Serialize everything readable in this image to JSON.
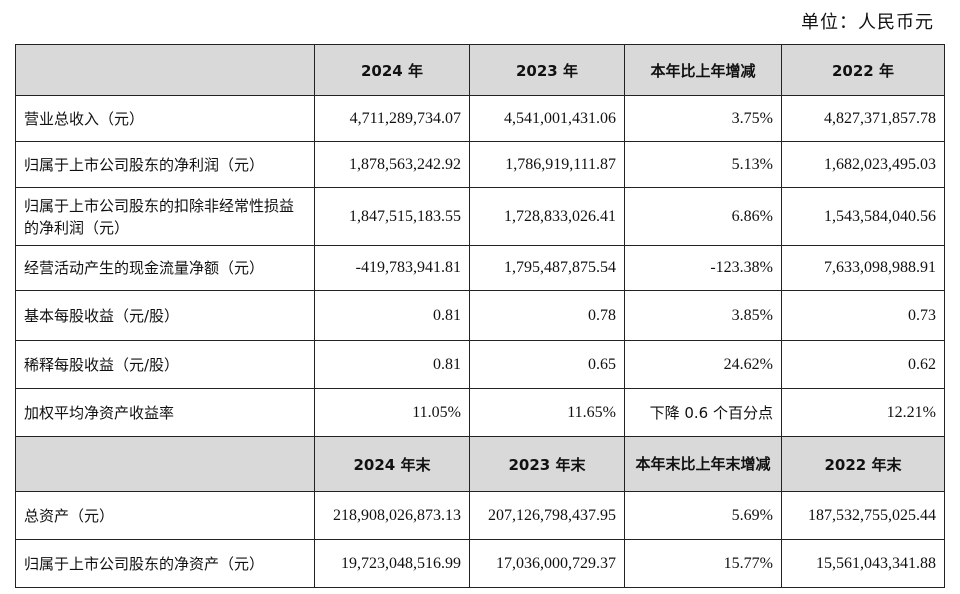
{
  "unit_note": "单位：人民币元",
  "header1": [
    "",
    "2024 年",
    "2023 年",
    "本年比上年增减",
    "2022 年"
  ],
  "rows1": [
    {
      "label": "营业总收入（元）",
      "v2024": "4,711,289,734.07",
      "v2023": "4,541,001,431.06",
      "change": "3.75%",
      "v2022": "4,827,371,857.78"
    },
    {
      "label": "归属于上市公司股东的净利润（元）",
      "v2024": "1,878,563,242.92",
      "v2023": "1,786,919,111.87",
      "change": "5.13%",
      "v2022": "1,682,023,495.03"
    },
    {
      "label": "归属于上市公司股东的扣除非经常性损益的净利润（元）",
      "v2024": "1,847,515,183.55",
      "v2023": "1,728,833,026.41",
      "change": "6.86%",
      "v2022": "1,543,584,040.56"
    },
    {
      "label": "经营活动产生的现金流量净额（元）",
      "v2024": "-419,783,941.81",
      "v2023": "1,795,487,875.54",
      "change": "-123.38%",
      "v2022": "7,633,098,988.91"
    },
    {
      "label": "基本每股收益（元/股）",
      "v2024": "0.81",
      "v2023": "0.78",
      "change": "3.85%",
      "v2022": "0.73"
    },
    {
      "label": "稀释每股收益（元/股）",
      "v2024": "0.81",
      "v2023": "0.65",
      "change": "24.62%",
      "v2022": "0.62"
    },
    {
      "label": "加权平均净资产收益率",
      "v2024": "11.05%",
      "v2023": "11.65%",
      "change": "下降 0.6 个百分点",
      "v2022": "12.21%"
    }
  ],
  "header2": [
    "",
    "2024 年末",
    "2023 年末",
    "本年末比上年末增减",
    "2022 年末"
  ],
  "rows2": [
    {
      "label": "总资产（元）",
      "v2024": "218,908,026,873.13",
      "v2023": "207,126,798,437.95",
      "change": "5.69%",
      "v2022": "187,532,755,025.44"
    },
    {
      "label": "归属于上市公司股东的净资产（元）",
      "v2024": "19,723,048,516.99",
      "v2023": "17,036,000,729.37",
      "change": "15.77%",
      "v2022": "15,561,043,341.88"
    }
  ]
}
